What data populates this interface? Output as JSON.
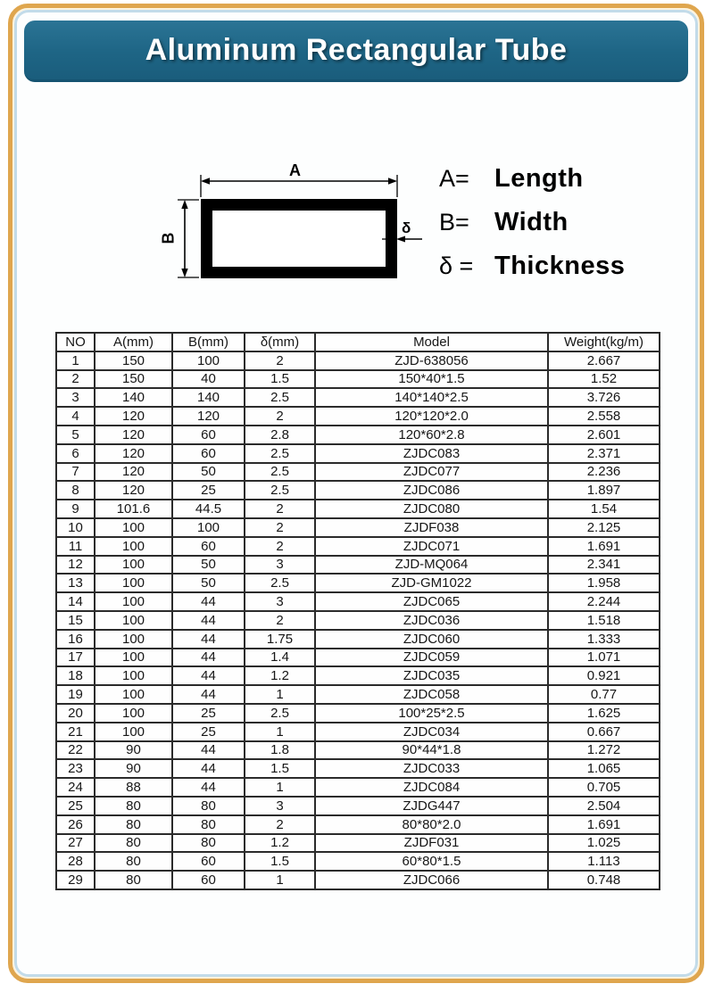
{
  "page": {
    "title": "Aluminum Rectangular Tube"
  },
  "colors": {
    "accent_teal": "#1e6585",
    "border_gold": "#dfa64e",
    "inner_border_blue": "#c2dbe9",
    "table_line": "#2b2b2b"
  },
  "diagram": {
    "dim_a_label": "A",
    "dim_b_label": "B",
    "dim_delta_label": "δ",
    "legend": [
      {
        "symbol": "A=",
        "meaning": "Length"
      },
      {
        "symbol": "B=",
        "meaning": "Width"
      },
      {
        "symbol": "δ =",
        "meaning": "Thickness"
      }
    ]
  },
  "table": {
    "columns": [
      "NO",
      "A(mm)",
      "B(mm)",
      "δ(mm)",
      "Model",
      "Weight(kg/m)"
    ],
    "rows": [
      [
        "1",
        "150",
        "100",
        "2",
        "ZJD-638056",
        "2.667"
      ],
      [
        "2",
        "150",
        "40",
        "1.5",
        "150*40*1.5",
        "1.52"
      ],
      [
        "3",
        "140",
        "140",
        "2.5",
        "140*140*2.5",
        "3.726"
      ],
      [
        "4",
        "120",
        "120",
        "2",
        "120*120*2.0",
        "2.558"
      ],
      [
        "5",
        "120",
        "60",
        "2.8",
        "120*60*2.8",
        "2.601"
      ],
      [
        "6",
        "120",
        "60",
        "2.5",
        "ZJDC083",
        "2.371"
      ],
      [
        "7",
        "120",
        "50",
        "2.5",
        "ZJDC077",
        "2.236"
      ],
      [
        "8",
        "120",
        "25",
        "2.5",
        "ZJDC086",
        "1.897"
      ],
      [
        "9",
        "101.6",
        "44.5",
        "2",
        "ZJDC080",
        "1.54"
      ],
      [
        "10",
        "100",
        "100",
        "2",
        "ZJDF038",
        "2.125"
      ],
      [
        "11",
        "100",
        "60",
        "2",
        "ZJDC071",
        "1.691"
      ],
      [
        "12",
        "100",
        "50",
        "3",
        "ZJD-MQ064",
        "2.341"
      ],
      [
        "13",
        "100",
        "50",
        "2.5",
        "ZJD-GM1022",
        "1.958"
      ],
      [
        "14",
        "100",
        "44",
        "3",
        "ZJDC065",
        "2.244"
      ],
      [
        "15",
        "100",
        "44",
        "2",
        "ZJDC036",
        "1.518"
      ],
      [
        "16",
        "100",
        "44",
        "1.75",
        "ZJDC060",
        "1.333"
      ],
      [
        "17",
        "100",
        "44",
        "1.4",
        "ZJDC059",
        "1.071"
      ],
      [
        "18",
        "100",
        "44",
        "1.2",
        "ZJDC035",
        "0.921"
      ],
      [
        "19",
        "100",
        "44",
        "1",
        "ZJDC058",
        "0.77"
      ],
      [
        "20",
        "100",
        "25",
        "2.5",
        "100*25*2.5",
        "1.625"
      ],
      [
        "21",
        "100",
        "25",
        "1",
        "ZJDC034",
        "0.667"
      ],
      [
        "22",
        "90",
        "44",
        "1.8",
        "90*44*1.8",
        "1.272"
      ],
      [
        "23",
        "90",
        "44",
        "1.5",
        "ZJDC033",
        "1.065"
      ],
      [
        "24",
        "88",
        "44",
        "1",
        "ZJDC084",
        "0.705"
      ],
      [
        "25",
        "80",
        "80",
        "3",
        "ZJDG447",
        "2.504"
      ],
      [
        "26",
        "80",
        "80",
        "2",
        "80*80*2.0",
        "1.691"
      ],
      [
        "27",
        "80",
        "80",
        "1.2",
        "ZJDF031",
        "1.025"
      ],
      [
        "28",
        "80",
        "60",
        "1.5",
        "60*80*1.5",
        "1.113"
      ],
      [
        "29",
        "80",
        "60",
        "1",
        "ZJDC066",
        "0.748"
      ]
    ]
  }
}
